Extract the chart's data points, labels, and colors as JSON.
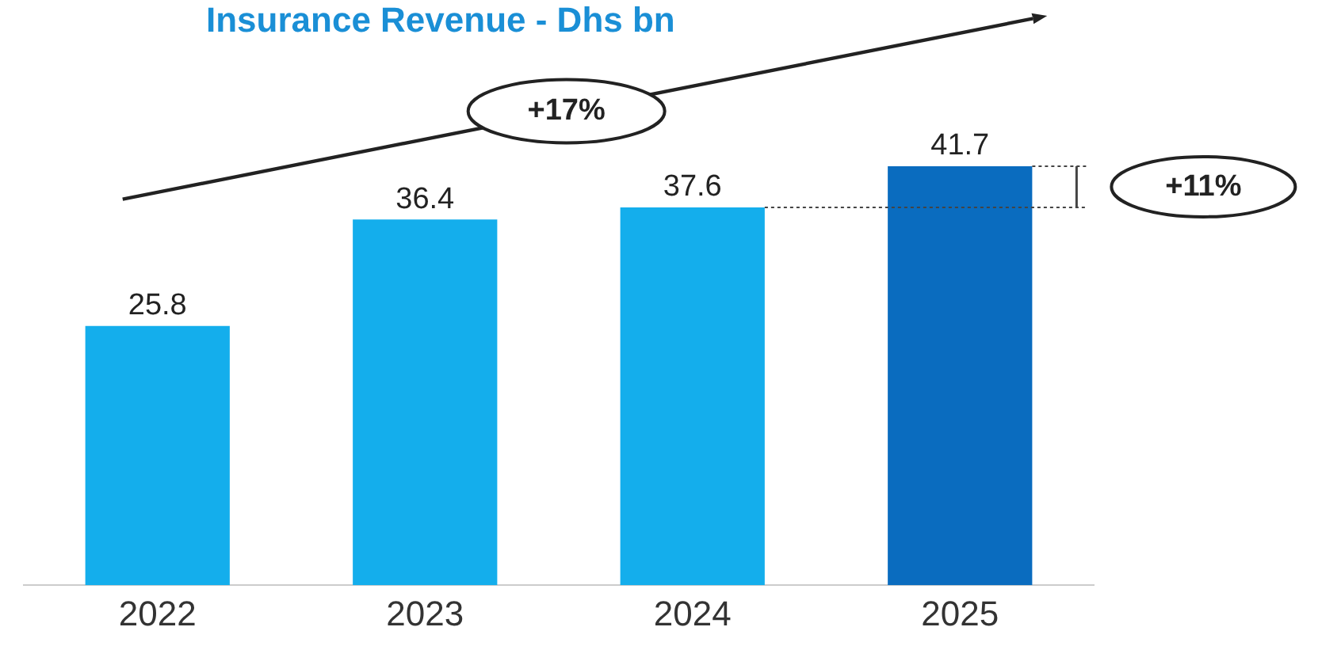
{
  "chart_data": {
    "type": "bar",
    "title": "Insurance Revenue - Dhs bn",
    "categories": [
      "2022",
      "2023",
      "2024",
      "2025"
    ],
    "values": [
      25.8,
      36.4,
      37.6,
      41.7
    ],
    "colors": [
      "#14aeec",
      "#14aeec",
      "#14aeec",
      "#0a6cbf"
    ],
    "data_labels": true,
    "grid": false,
    "legend": false,
    "annotations": [
      "+17%",
      "+11%"
    ]
  }
}
